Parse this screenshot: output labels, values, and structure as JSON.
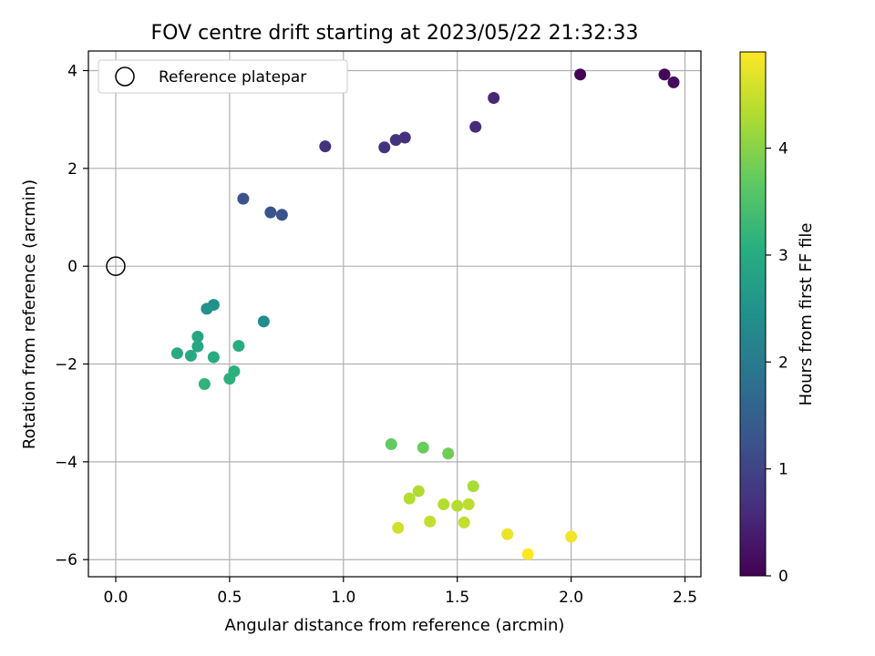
{
  "chart_data": {
    "type": "scatter",
    "title": "FOV centre drift starting at 2023/05/22 21:32:33",
    "xlabel": "Angular distance from reference (arcmin)",
    "ylabel": "Rotation from reference (arcmin)",
    "xlim": [
      -0.12,
      2.57
    ],
    "ylim": [
      -6.35,
      4.4
    ],
    "xticks": [
      0.0,
      0.5,
      1.0,
      1.5,
      2.0,
      2.5
    ],
    "xtick_labels": [
      "0.0",
      "0.5",
      "1.0",
      "1.5",
      "2.0",
      "2.5"
    ],
    "yticks": [
      -6,
      -4,
      -2,
      0,
      2,
      4
    ],
    "ytick_labels": [
      "−6",
      "−4",
      "−2",
      "0",
      "2",
      "4"
    ],
    "grid": true,
    "legend": {
      "position": "top-left",
      "label": "Reference platepar"
    },
    "reference_point": {
      "x": 0.0,
      "y": 0.0
    },
    "colorbar": {
      "label": "Hours from first FF file",
      "range": [
        0,
        4.9
      ],
      "ticks": [
        0,
        1,
        2,
        3,
        4
      ],
      "tick_labels": [
        "0",
        "1",
        "2",
        "3",
        "4"
      ],
      "colormap": "viridis"
    },
    "points": [
      {
        "x": 2.04,
        "y": 3.92,
        "hours": 0.05
      },
      {
        "x": 2.41,
        "y": 3.92,
        "hours": 0.1
      },
      {
        "x": 2.45,
        "y": 3.76,
        "hours": 0.15
      },
      {
        "x": 1.66,
        "y": 3.44,
        "hours": 0.55
      },
      {
        "x": 1.58,
        "y": 2.85,
        "hours": 0.6
      },
      {
        "x": 1.27,
        "y": 2.63,
        "hours": 0.65
      },
      {
        "x": 1.23,
        "y": 2.58,
        "hours": 0.7
      },
      {
        "x": 1.18,
        "y": 2.43,
        "hours": 0.7
      },
      {
        "x": 0.92,
        "y": 2.45,
        "hours": 0.7
      },
      {
        "x": 0.56,
        "y": 1.38,
        "hours": 1.25
      },
      {
        "x": 0.68,
        "y": 1.1,
        "hours": 1.25
      },
      {
        "x": 0.73,
        "y": 1.05,
        "hours": 1.25
      },
      {
        "x": 0.65,
        "y": -1.13,
        "hours": 2.35
      },
      {
        "x": 0.43,
        "y": -0.79,
        "hours": 2.45
      },
      {
        "x": 0.4,
        "y": -0.87,
        "hours": 2.5
      },
      {
        "x": 0.36,
        "y": -1.44,
        "hours": 2.9
      },
      {
        "x": 0.36,
        "y": -1.64,
        "hours": 2.9
      },
      {
        "x": 0.27,
        "y": -1.78,
        "hours": 2.95
      },
      {
        "x": 0.33,
        "y": -1.83,
        "hours": 2.95
      },
      {
        "x": 0.43,
        "y": -1.86,
        "hours": 3.0
      },
      {
        "x": 0.54,
        "y": -1.63,
        "hours": 3.05
      },
      {
        "x": 0.52,
        "y": -2.15,
        "hours": 3.1
      },
      {
        "x": 0.5,
        "y": -2.3,
        "hours": 3.1
      },
      {
        "x": 0.39,
        "y": -2.41,
        "hours": 3.15
      },
      {
        "x": 1.21,
        "y": -3.64,
        "hours": 3.7
      },
      {
        "x": 1.35,
        "y": -3.71,
        "hours": 3.75
      },
      {
        "x": 1.46,
        "y": -3.83,
        "hours": 3.8
      },
      {
        "x": 1.57,
        "y": -4.5,
        "hours": 4.25
      },
      {
        "x": 1.33,
        "y": -4.6,
        "hours": 4.3
      },
      {
        "x": 1.29,
        "y": -4.75,
        "hours": 4.35
      },
      {
        "x": 1.44,
        "y": -4.87,
        "hours": 4.35
      },
      {
        "x": 1.5,
        "y": -4.9,
        "hours": 4.35
      },
      {
        "x": 1.55,
        "y": -4.87,
        "hours": 4.4
      },
      {
        "x": 1.38,
        "y": -5.22,
        "hours": 4.45
      },
      {
        "x": 1.53,
        "y": -5.24,
        "hours": 4.45
      },
      {
        "x": 1.24,
        "y": -5.35,
        "hours": 4.55
      },
      {
        "x": 1.72,
        "y": -5.48,
        "hours": 4.75
      },
      {
        "x": 2.0,
        "y": -5.53,
        "hours": 4.8
      },
      {
        "x": 1.81,
        "y": -5.89,
        "hours": 4.9
      }
    ]
  }
}
